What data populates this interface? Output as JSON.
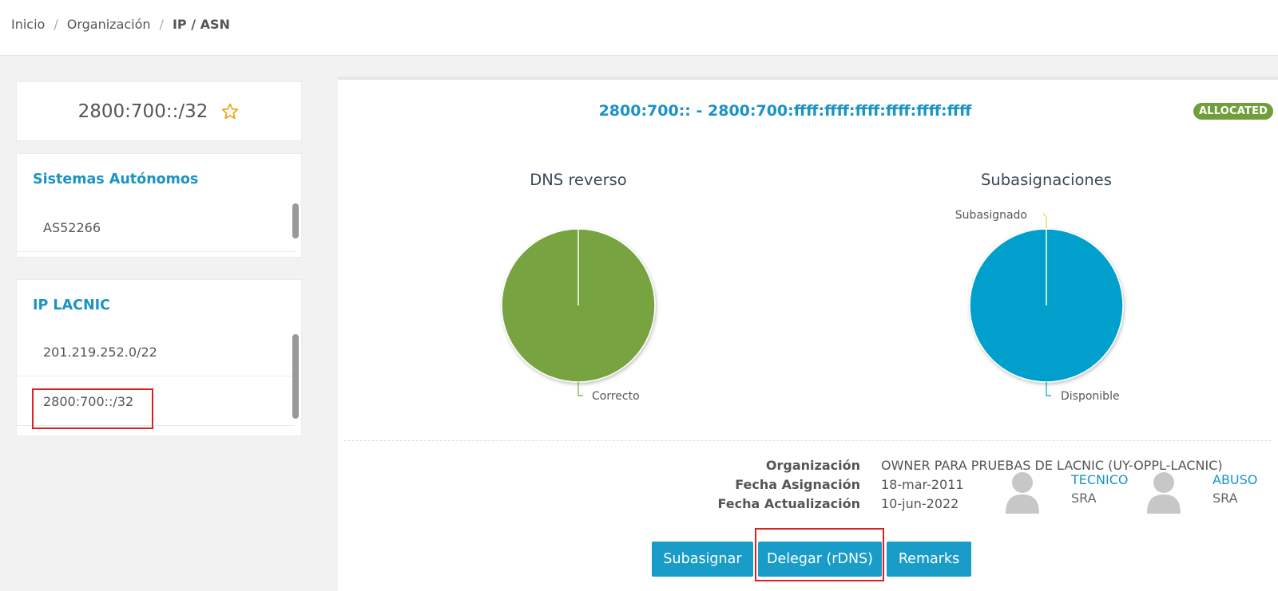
{
  "breadcrumb": {
    "home": "Inicio",
    "organization": "Organización",
    "current": "IP / ASN"
  },
  "prefix_card": {
    "title": "2800:700::/32",
    "favorite_icon": "star-outline-icon"
  },
  "autonomous_systems": {
    "heading": "Sistemas Autónomos",
    "items": [
      "AS52266"
    ]
  },
  "ip_lacnic": {
    "heading": "IP LACNIC",
    "items": [
      "201.219.252.0/22",
      "2800:700::/32"
    ]
  },
  "detail": {
    "range": "2800:700:: - 2800:700:ffff:ffff:ffff:ffff:ffff:ffff",
    "status_badge": "ALLOCATED"
  },
  "chart_data": [
    {
      "type": "pie",
      "title": "DNS reverso",
      "slices": [
        {
          "name": "Correcto",
          "value": 100,
          "color": "#77a341"
        }
      ]
    },
    {
      "type": "pie",
      "title": "Subasignaciones",
      "slices": [
        {
          "name": "Subasignado",
          "value": 0,
          "color": "#f4d03f"
        },
        {
          "name": "Disponible",
          "value": 100,
          "color": "#009fcc"
        }
      ]
    }
  ],
  "info": {
    "labels": [
      "Organización",
      "Fecha Asignación",
      "Fecha Actualización"
    ],
    "values": [
      "OWNER PARA PRUEBAS DE LACNIC (UY-OPPL-LACNIC)",
      "18-mar-2011",
      "10-jun-2022"
    ]
  },
  "contacts": [
    {
      "role": "TECNICO",
      "name": "SRA",
      "icon": "user-avatar-icon"
    },
    {
      "role": "ABUSO",
      "name": "SRA",
      "icon": "user-avatar-icon"
    }
  ],
  "actions": {
    "subassign": "Subasignar",
    "delegate": "Delegar (rDNS)",
    "remarks": "Remarks"
  },
  "colors": {
    "accent": "#1a9cc9",
    "badge": "#6f9f3a",
    "highlight": "#e02020"
  }
}
